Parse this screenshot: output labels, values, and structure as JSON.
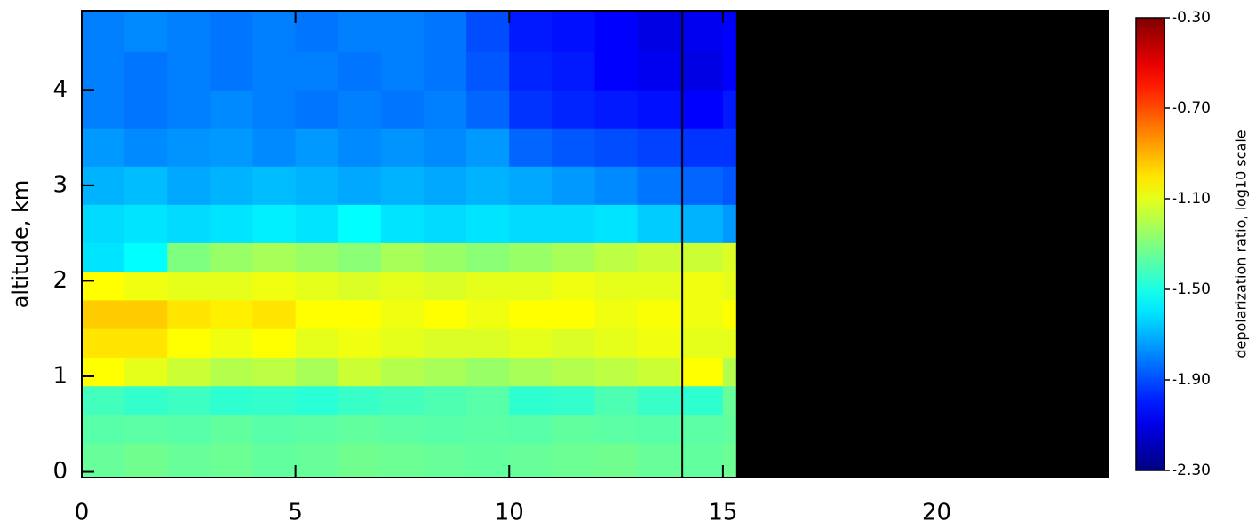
{
  "chart_data": {
    "type": "heatmap",
    "ylabel": "altitude, km",
    "zlabel": "depolarization ratio, log10 scale",
    "colormap": "jet",
    "xlim": [
      0,
      24
    ],
    "xticks": [
      0,
      5,
      10,
      15,
      20
    ],
    "ylim": [
      -0.06,
      4.83
    ],
    "yticks": [
      0,
      1,
      2,
      3,
      4
    ],
    "zlim": [
      -2.3,
      -0.3
    ],
    "zticks": [
      {
        "value": -0.3,
        "label": "-0.30"
      },
      {
        "value": -0.7,
        "label": "-0.70"
      },
      {
        "value": -1.1,
        "label": "-1.10"
      },
      {
        "value": -1.5,
        "label": "-1.50"
      },
      {
        "value": -1.9,
        "label": "-1.90"
      },
      {
        "value": -2.3,
        "label": "-2.30"
      }
    ],
    "x_edges": [
      0,
      1,
      2,
      3,
      4,
      5,
      6,
      7,
      8,
      9,
      10,
      11,
      12,
      13,
      14,
      15,
      15.3
    ],
    "y_edges": [
      -0.06,
      0.3,
      0.6,
      0.9,
      1.2,
      1.5,
      1.8,
      2.1,
      2.4,
      2.8,
      3.2,
      3.6,
      4.0,
      4.4,
      4.83
    ],
    "z": [
      [
        -1.35,
        -1.33,
        -1.35,
        -1.34,
        -1.36,
        -1.35,
        -1.33,
        -1.34,
        -1.35,
        -1.36,
        -1.35,
        -1.34,
        -1.33,
        -1.35,
        -1.36,
        -1.34
      ],
      [
        -1.38,
        -1.37,
        -1.38,
        -1.36,
        -1.38,
        -1.37,
        -1.36,
        -1.37,
        -1.38,
        -1.37,
        -1.38,
        -1.36,
        -1.37,
        -1.38,
        -1.37,
        -1.36
      ],
      [
        -1.42,
        -1.45,
        -1.43,
        -1.46,
        -1.45,
        -1.47,
        -1.44,
        -1.42,
        -1.4,
        -1.38,
        -1.46,
        -1.45,
        -1.4,
        -1.44,
        -1.46,
        -1.35
      ],
      [
        -1.05,
        -1.1,
        -1.15,
        -1.2,
        -1.18,
        -1.22,
        -1.15,
        -1.2,
        -1.22,
        -1.25,
        -1.22,
        -1.2,
        -1.18,
        -1.15,
        -1.05,
        -1.2
      ],
      [
        -1.0,
        -1.0,
        -1.05,
        -1.08,
        -1.05,
        -1.1,
        -1.08,
        -1.1,
        -1.12,
        -1.12,
        -1.1,
        -1.12,
        -1.1,
        -1.08,
        -1.1,
        -1.1
      ],
      [
        -0.95,
        -0.95,
        -1.0,
        -1.02,
        -1.0,
        -1.05,
        -1.05,
        -1.08,
        -1.05,
        -1.08,
        -1.05,
        -1.05,
        -1.08,
        -1.06,
        -1.08,
        -1.05
      ],
      [
        -1.05,
        -1.08,
        -1.1,
        -1.1,
        -1.08,
        -1.1,
        -1.12,
        -1.1,
        -1.12,
        -1.1,
        -1.1,
        -1.08,
        -1.1,
        -1.1,
        -1.08,
        -1.1
      ],
      [
        -1.6,
        -1.55,
        -1.3,
        -1.25,
        -1.22,
        -1.25,
        -1.28,
        -1.22,
        -1.25,
        -1.28,
        -1.25,
        -1.22,
        -1.18,
        -1.15,
        -1.15,
        -1.12
      ],
      [
        -1.62,
        -1.6,
        -1.62,
        -1.6,
        -1.58,
        -1.6,
        -1.55,
        -1.6,
        -1.62,
        -1.6,
        -1.62,
        -1.62,
        -1.6,
        -1.65,
        -1.7,
        -1.75
      ],
      [
        -1.7,
        -1.68,
        -1.72,
        -1.7,
        -1.68,
        -1.7,
        -1.72,
        -1.7,
        -1.72,
        -1.7,
        -1.72,
        -1.75,
        -1.78,
        -1.82,
        -1.85,
        -1.88
      ],
      [
        -1.75,
        -1.78,
        -1.76,
        -1.75,
        -1.78,
        -1.75,
        -1.78,
        -1.76,
        -1.78,
        -1.75,
        -1.85,
        -1.88,
        -1.9,
        -1.92,
        -1.95,
        -1.95
      ],
      [
        -1.8,
        -1.82,
        -1.8,
        -1.78,
        -1.8,
        -1.82,
        -1.8,
        -1.82,
        -1.8,
        -1.85,
        -1.95,
        -1.98,
        -2.0,
        -2.02,
        -2.05,
        -2.0
      ],
      [
        -1.8,
        -1.82,
        -1.8,
        -1.82,
        -1.8,
        -1.8,
        -1.82,
        -1.8,
        -1.82,
        -1.88,
        -1.98,
        -2.0,
        -2.05,
        -2.08,
        -2.1,
        -2.05
      ],
      [
        -1.8,
        -1.78,
        -1.8,
        -1.82,
        -1.8,
        -1.82,
        -1.8,
        -1.8,
        -1.82,
        -1.9,
        -2.0,
        -2.02,
        -2.05,
        -2.1,
        -2.08,
        -2.05
      ]
    ],
    "vline_x": 14.05
  }
}
